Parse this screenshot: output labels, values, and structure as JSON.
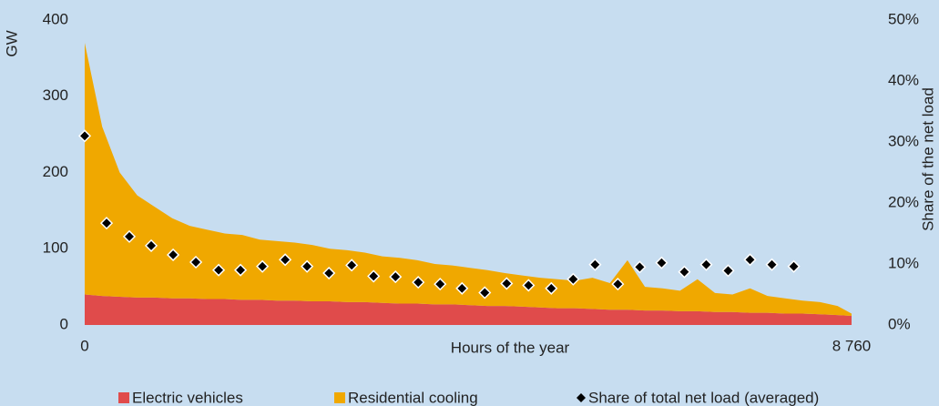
{
  "chart_data": {
    "type": "area",
    "y_label": "GW",
    "y2_label": "Share of the net load",
    "x_label": "Hours of the year",
    "x": [
      0,
      200,
      400,
      600,
      800,
      1000,
      1200,
      1400,
      1600,
      1800,
      2000,
      2200,
      2400,
      2600,
      2800,
      3000,
      3200,
      3400,
      3600,
      3800,
      4000,
      4200,
      4400,
      4600,
      4800,
      5000,
      5200,
      5400,
      5600,
      5800,
      6000,
      6200,
      6400,
      6600,
      6800,
      7000,
      7200,
      7400,
      7600,
      7800,
      8000,
      8200,
      8400,
      8600,
      8760
    ],
    "series": [
      {
        "name": "Electric vehicles",
        "color": "#e04b4b",
        "values": [
          40,
          38,
          37,
          36,
          36,
          35,
          35,
          34,
          34,
          33,
          33,
          32,
          32,
          31,
          31,
          30,
          30,
          29,
          28,
          28,
          27,
          27,
          26,
          25,
          25,
          24,
          23,
          22,
          22,
          21,
          20,
          20,
          19,
          19,
          18,
          18,
          17,
          17,
          16,
          16,
          15,
          15,
          14,
          13,
          12
        ]
      },
      {
        "name": "Residential cooling",
        "color": "#f0a800",
        "values": [
          330,
          222,
          163,
          134,
          119,
          105,
          95,
          91,
          86,
          85,
          79,
          78,
          76,
          74,
          69,
          68,
          65,
          61,
          60,
          57,
          53,
          51,
          49,
          47,
          43,
          41,
          39,
          38,
          36,
          41,
          35,
          65,
          31,
          29,
          27,
          42,
          25,
          23,
          32,
          22,
          20,
          17,
          16,
          12,
          3
        ]
      },
      {
        "name": "Share of total net load (averaged)",
        "color": "#000000",
        "type": "scatter",
        "axis": "y2",
        "x": [
          0,
          250,
          510,
          760,
          1010,
          1270,
          1530,
          1780,
          2030,
          2290,
          2540,
          2790,
          3050,
          3300,
          3550,
          3810,
          4060,
          4310,
          4570,
          4820,
          5070,
          5330,
          5580,
          5830,
          6090,
          6340,
          6590,
          6850,
          7100,
          7350,
          7600,
          7850,
          8100
        ],
        "values": [
          31,
          16.7,
          14.5,
          13,
          11.5,
          10.3,
          9,
          9,
          9.6,
          10.7,
          9.6,
          8.5,
          9.8,
          8,
          7.9,
          7,
          6.7,
          6,
          5.3,
          6.8,
          6.5,
          6,
          7.5,
          9.9,
          6.7,
          9.5,
          10.2,
          8.7,
          9.9,
          8.9,
          10.7,
          9.9,
          9.6
        ]
      }
    ],
    "xlim": [
      0,
      8760
    ],
    "xticks": [
      0,
      {
        "value": 8760,
        "label": "8 760"
      }
    ],
    "ylim": [
      0,
      400
    ],
    "yticks": [
      0,
      100,
      200,
      300,
      400
    ],
    "y2lim": [
      0,
      50
    ],
    "y2ticks": [
      {
        "value": 0,
        "label": "0%"
      },
      {
        "value": 10,
        "label": "10%"
      },
      {
        "value": 20,
        "label": "20%"
      },
      {
        "value": 30,
        "label": "30%"
      },
      {
        "value": 40,
        "label": "40%"
      },
      {
        "value": 50,
        "label": "50%"
      }
    ],
    "grid": false
  }
}
